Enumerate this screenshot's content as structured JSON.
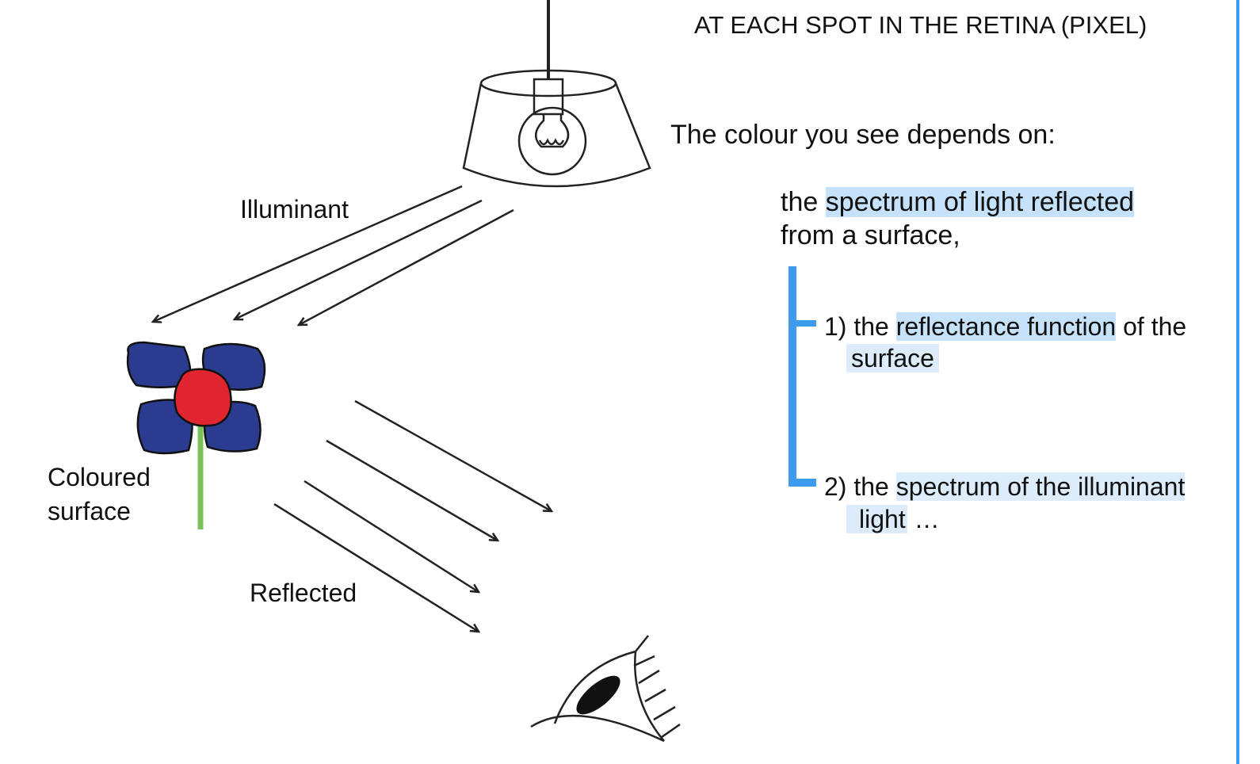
{
  "header": "AT EACH SPOT IN THE RETINA (PIXEL)",
  "lead": "The colour you see depends on:",
  "main_point": {
    "prefix": "the ",
    "highlight": "spectrum of light reflected",
    "line2": "from a surface,"
  },
  "factors": [
    {
      "prefix": "1) the ",
      "highlight": "reflectance function",
      "suffix": " of the",
      "line2": "surface"
    },
    {
      "prefix": "2) the ",
      "highlight": "spectrum of the illuminant",
      "line2_highlight": "light",
      "line2_suffix": " …"
    }
  ],
  "labels": {
    "illuminant": "Illuminant",
    "surface_line1": "Coloured",
    "surface_line2": "surface",
    "reflected": "Reflected"
  },
  "colors": {
    "accent": "#3d9bf0",
    "highlight": "#c6e2fa",
    "petal": "#2b3b8f",
    "center": "#e02530",
    "stem": "#7cc45a"
  },
  "icons": [
    "lamp-icon",
    "light-bulb-icon",
    "flower-icon",
    "eye-icon"
  ]
}
